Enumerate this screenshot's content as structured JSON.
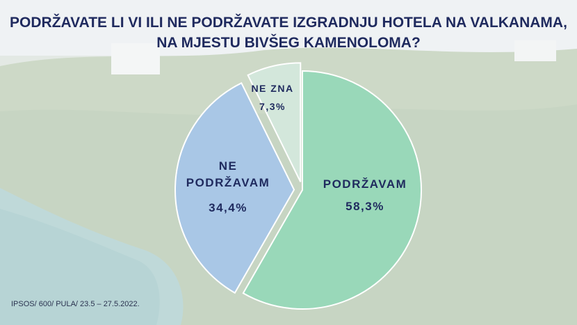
{
  "title_line1": "PODRŽAVATE LI VI ILI NE PODRŽAVATE IZGRADNJU HOTELA NA VALKANAMA,",
  "title_line2": "NA MJESTU BIVŠEG KAMENOLOMA?",
  "source": "IPSOS/ 600/ PULA/ 23.5 – 27.5.2022.",
  "colors": {
    "title": "#1f2a5e",
    "podrzavam": "#99d8b9",
    "ne_podrzavam": "#a9c7e6",
    "ne_zna": "#d3e7db",
    "slice_stroke": "#ffffff"
  },
  "chart_data": {
    "type": "pie",
    "title": "PODRŽAVATE LI VI ILI NE PODRŽAVATE IZGRADNJU HOTELA NA VALKANAMA, NA MJESTU BIVŠEG KAMENOLOMA?",
    "slices": [
      {
        "key": "podrzavam",
        "label_lines": [
          "PODRŽAVAM"
        ],
        "value": 58.3,
        "value_label": "58,3%",
        "exploded": false
      },
      {
        "key": "ne_podrzavam",
        "label_lines": [
          "NE",
          "PODRŽAVAM"
        ],
        "value": 34.4,
        "value_label": "34,4%",
        "exploded": true
      },
      {
        "key": "ne_zna",
        "label_lines": [
          "NE ZNA"
        ],
        "value": 7.3,
        "value_label": "7,3%",
        "exploded": true
      }
    ]
  }
}
